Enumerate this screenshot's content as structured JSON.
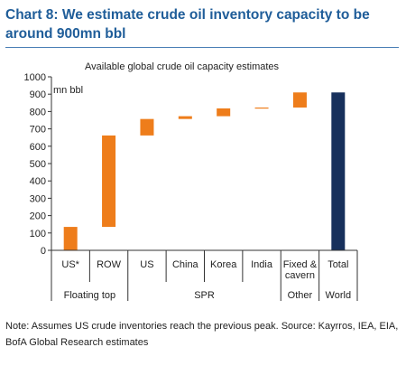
{
  "header": {
    "title": "Chart 8: We estimate crude oil inventory capacity to be around 900mn bbl"
  },
  "note": "Note: Assumes US crude inventories reach the previous peak. Source: Kayrros, IEA, EIA, BofA Global Research estimates",
  "chart_data": {
    "type": "bar",
    "subtype": "waterfall",
    "title": "Available global crude oil capacity estimates",
    "ylabel": "mn bbl",
    "ylim": [
      0,
      1000
    ],
    "yticks": [
      0,
      100,
      200,
      300,
      400,
      500,
      600,
      700,
      800,
      900,
      1000
    ],
    "categories": [
      "US*",
      "ROW",
      "US",
      "China",
      "Korea",
      "India",
      "Fixed & cavern",
      "Total"
    ],
    "groups": [
      {
        "label": "Floating top",
        "categories": [
          "US*",
          "ROW"
        ]
      },
      {
        "label": "SPR",
        "categories": [
          "US",
          "China",
          "Korea",
          "India"
        ]
      },
      {
        "label": "Other",
        "categories": [
          "Fixed & cavern"
        ]
      },
      {
        "label": "World",
        "categories": [
          "Total"
        ]
      }
    ],
    "bars": [
      {
        "category": "US*",
        "low": 0,
        "high": 135,
        "value": 135
      },
      {
        "category": "ROW",
        "low": 135,
        "high": 662,
        "value": 527
      },
      {
        "category": "US",
        "low": 662,
        "high": 757,
        "value": 95
      },
      {
        "category": "China",
        "low": 757,
        "high": 773,
        "value": 16
      },
      {
        "category": "Korea",
        "low": 773,
        "high": 818,
        "value": 45
      },
      {
        "category": "India",
        "low": 818,
        "high": 823,
        "value": 5
      },
      {
        "category": "Fixed & cavern",
        "low": 823,
        "high": 910,
        "value": 87
      },
      {
        "category": "Total",
        "low": 0,
        "high": 910,
        "value": 910
      }
    ],
    "colors": {
      "increment": "#ee7d1b",
      "total": "#17305c"
    },
    "grid": false
  }
}
